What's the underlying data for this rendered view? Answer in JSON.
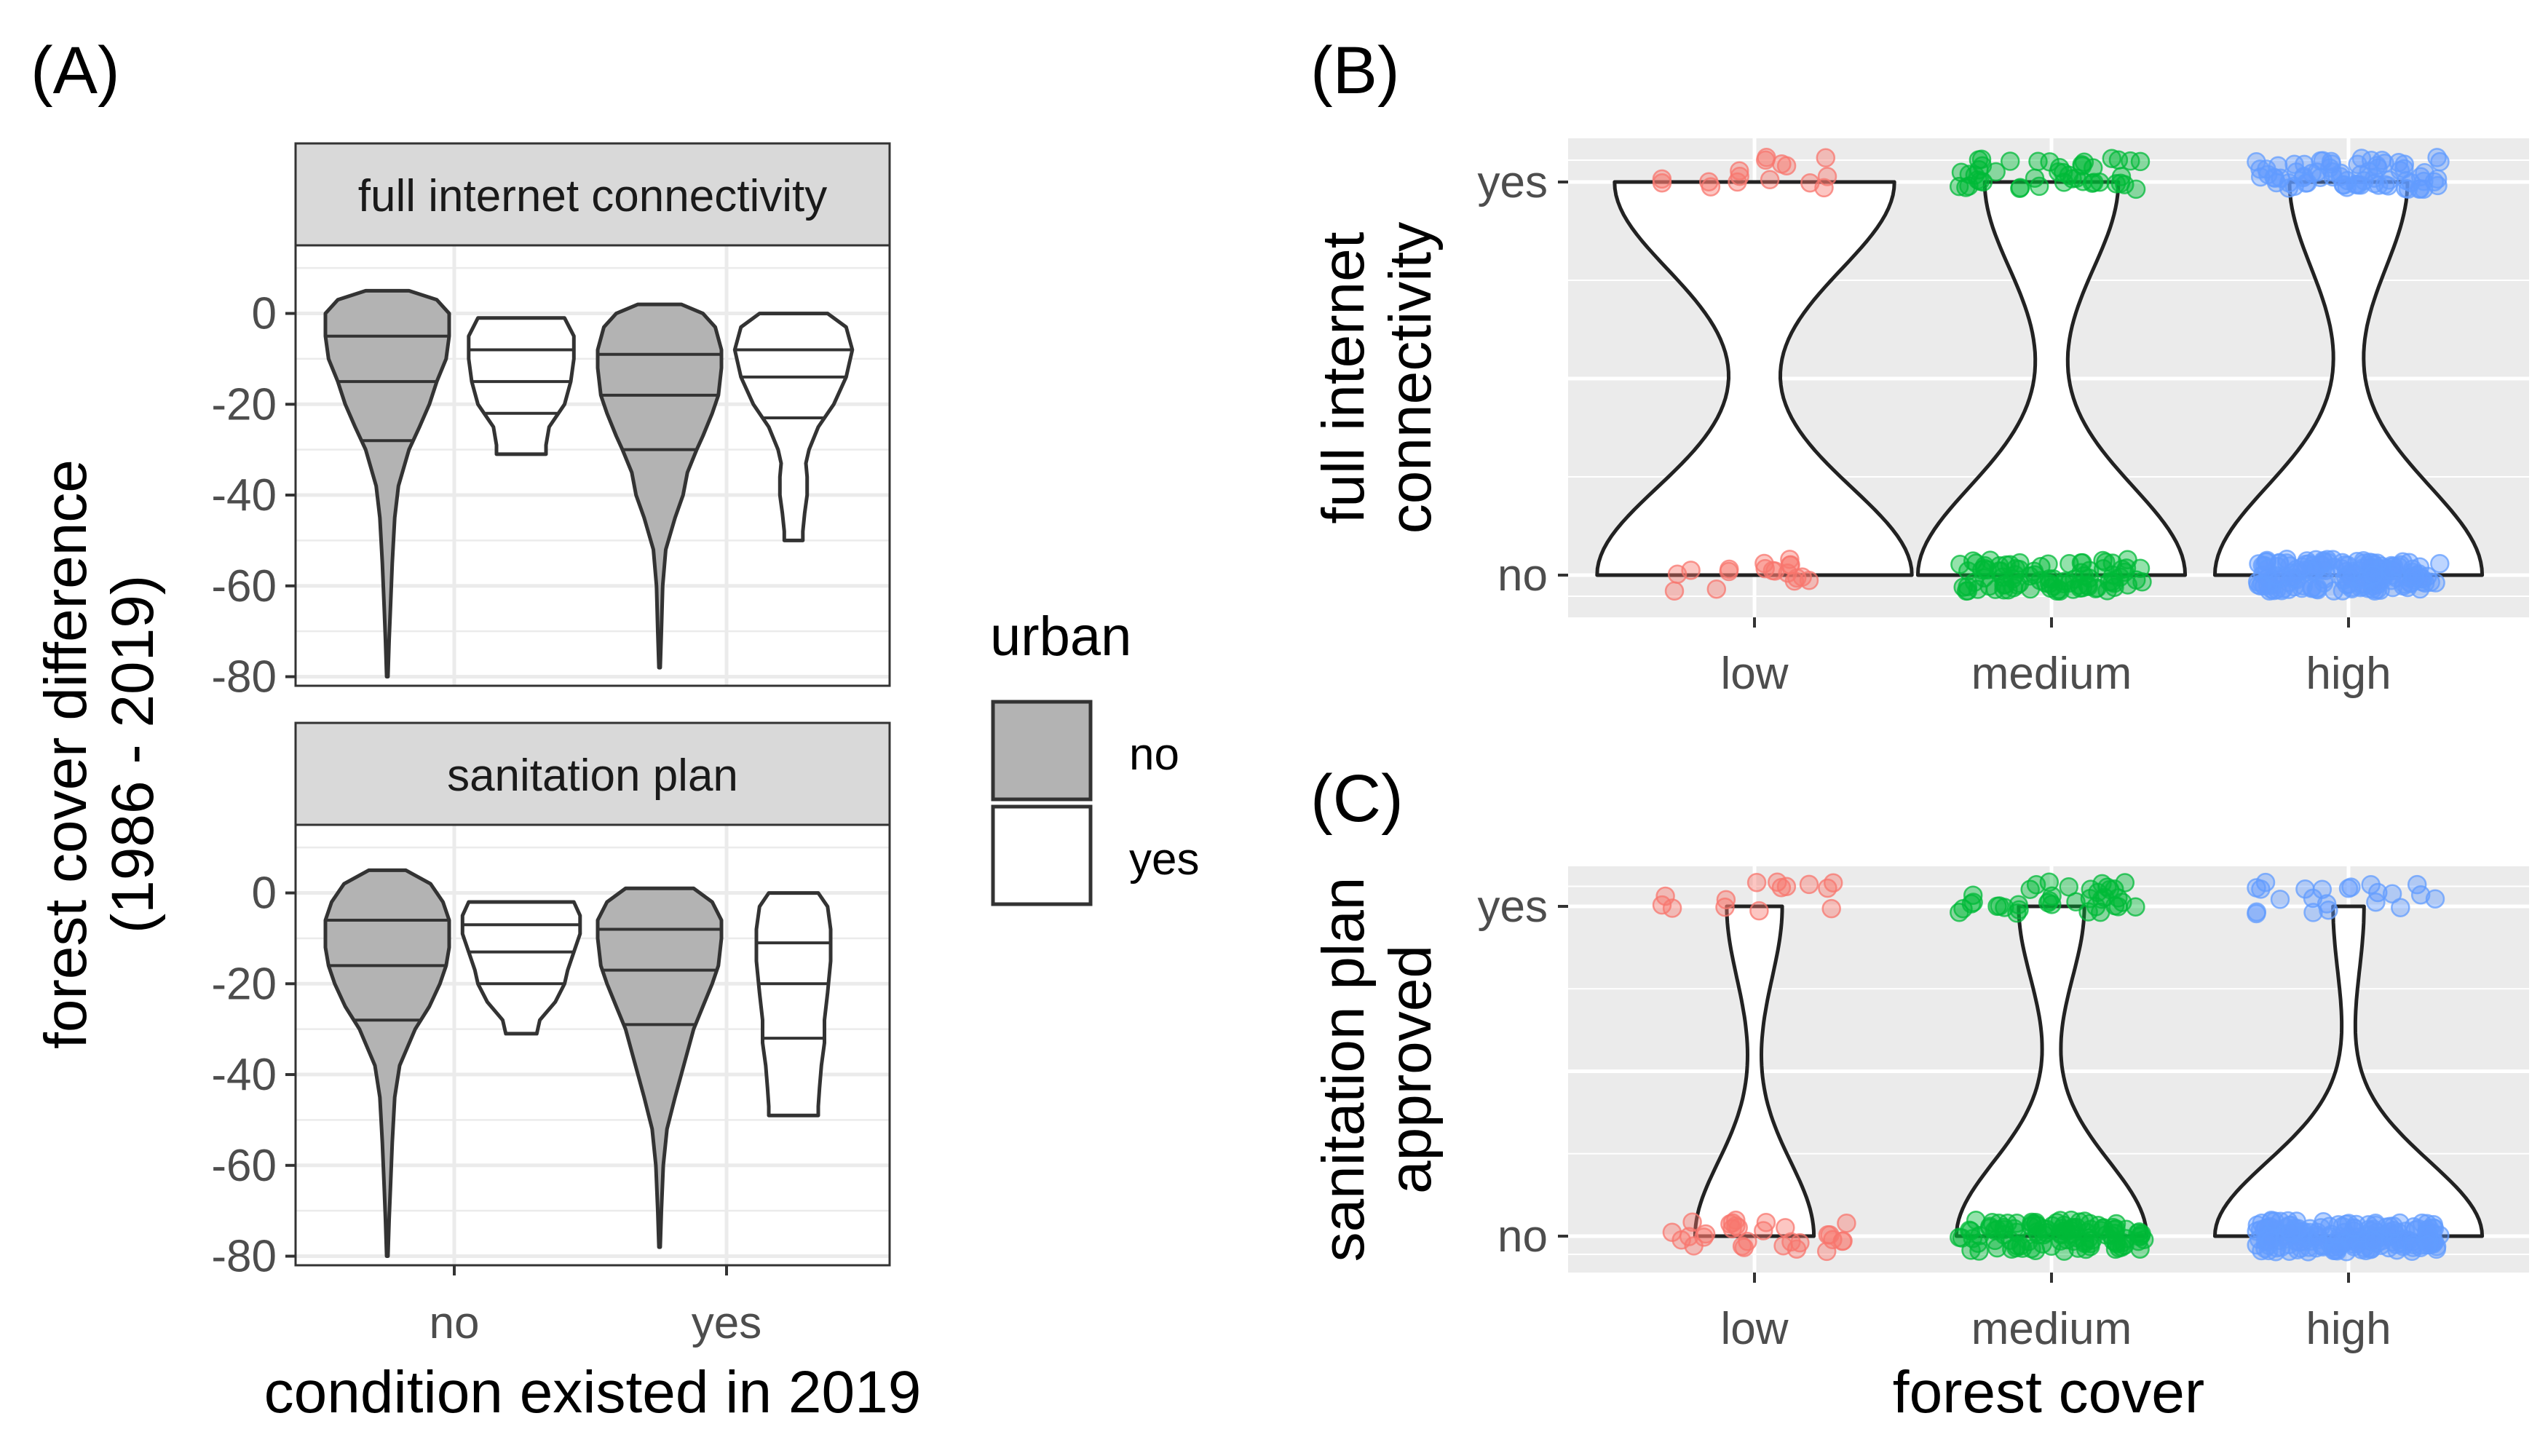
{
  "panel_tags": [
    "(A)",
    "(B)",
    "(C)"
  ],
  "colors": {
    "urban_no_fill": "#b3b3b3",
    "urban_yes_fill": "#ffffff",
    "outline": "#333333",
    "panel_bg": "#ebebeb",
    "strip_bg": "#d9d9d9",
    "low": "#f8766d",
    "medium": "#00ba38",
    "high": "#619cff"
  },
  "legend": {
    "title": "urban",
    "items": [
      {
        "label": "no",
        "fill": "#b3b3b3"
      },
      {
        "label": "yes",
        "fill": "#ffffff"
      }
    ]
  },
  "chart_data": [
    {
      "id": "A",
      "type": "violin",
      "facet": "full internet connectivity",
      "xlabel": "condition existed in 2019",
      "ylabel": "forest cover difference (1986 - 2019)",
      "categories": [
        "no",
        "yes"
      ],
      "ylim": [
        -82,
        15
      ],
      "yticks": [
        0,
        -20,
        -40,
        -60,
        -80
      ],
      "grid": true,
      "series": [
        {
          "name": "no",
          "violins": [
            {
              "x": "no",
              "min": -80,
              "max": 5,
              "quantiles": [
                -5,
                -15,
                -28
              ],
              "profile": [
                [
                  5,
                  0.35
                ],
                [
                  3,
                  0.8
                ],
                [
                  0,
                  1.0
                ],
                [
                  -5,
                  1.0
                ],
                [
                  -10,
                  0.95
                ],
                [
                  -15,
                  0.8
                ],
                [
                  -20,
                  0.68
                ],
                [
                  -25,
                  0.52
                ],
                [
                  -30,
                  0.35
                ],
                [
                  -38,
                  0.18
                ],
                [
                  -45,
                  0.12
                ],
                [
                  -55,
                  0.08
                ],
                [
                  -65,
                  0.05
                ],
                [
                  -72,
                  0.03
                ],
                [
                  -80,
                  0.01
                ]
              ]
            },
            {
              "x": "yes",
              "min": -78,
              "max": 2,
              "quantiles": [
                -9,
                -18,
                -30
              ],
              "profile": [
                [
                  2,
                  0.35
                ],
                [
                  0,
                  0.7
                ],
                [
                  -3,
                  0.9
                ],
                [
                  -8,
                  1.0
                ],
                [
                  -12,
                  1.0
                ],
                [
                  -18,
                  0.95
                ],
                [
                  -22,
                  0.85
                ],
                [
                  -27,
                  0.7
                ],
                [
                  -30,
                  0.6
                ],
                [
                  -35,
                  0.45
                ],
                [
                  -40,
                  0.38
                ],
                [
                  -45,
                  0.25
                ],
                [
                  -52,
                  0.1
                ],
                [
                  -60,
                  0.05
                ],
                [
                  -70,
                  0.03
                ],
                [
                  -78,
                  0.01
                ]
              ]
            }
          ]
        },
        {
          "name": "yes",
          "violins": [
            {
              "x": "no",
              "min": -31,
              "max": -1,
              "quantiles": [
                -8,
                -15,
                -22
              ],
              "profile": [
                [
                  -1,
                  0.7
                ],
                [
                  -5,
                  0.85
                ],
                [
                  -10,
                  0.85
                ],
                [
                  -15,
                  0.8
                ],
                [
                  -20,
                  0.7
                ],
                [
                  -25,
                  0.45
                ],
                [
                  -29,
                  0.4
                ],
                [
                  -31,
                  0.4
                ]
              ]
            },
            {
              "x": "yes",
              "min": -50,
              "max": 0,
              "quantiles": [
                -8,
                -14,
                -23
              ],
              "profile": [
                [
                  0,
                  0.55
                ],
                [
                  -3,
                  0.85
                ],
                [
                  -8,
                  0.95
                ],
                [
                  -14,
                  0.85
                ],
                [
                  -20,
                  0.65
                ],
                [
                  -25,
                  0.4
                ],
                [
                  -30,
                  0.25
                ],
                [
                  -33,
                  0.2
                ],
                [
                  -36,
                  0.22
                ],
                [
                  -40,
                  0.22
                ],
                [
                  -44,
                  0.18
                ],
                [
                  -48,
                  0.15
                ],
                [
                  -50,
                  0.15
                ]
              ]
            }
          ]
        }
      ]
    },
    {
      "id": "A",
      "type": "violin",
      "facet": "sanitation plan",
      "xlabel": "condition existed in 2019",
      "ylabel": "forest cover difference (1986 - 2019)",
      "categories": [
        "no",
        "yes"
      ],
      "ylim": [
        -82,
        15
      ],
      "yticks": [
        0,
        -20,
        -40,
        -60,
        -80
      ],
      "grid": true,
      "series": [
        {
          "name": "no",
          "violins": [
            {
              "x": "no",
              "min": -80,
              "max": 5,
              "quantiles": [
                -6,
                -16,
                -28
              ],
              "profile": [
                [
                  5,
                  0.3
                ],
                [
                  2,
                  0.7
                ],
                [
                  -2,
                  0.9
                ],
                [
                  -6,
                  1.0
                ],
                [
                  -12,
                  1.0
                ],
                [
                  -16,
                  0.95
                ],
                [
                  -20,
                  0.85
                ],
                [
                  -25,
                  0.68
                ],
                [
                  -30,
                  0.45
                ],
                [
                  -38,
                  0.2
                ],
                [
                  -45,
                  0.12
                ],
                [
                  -55,
                  0.08
                ],
                [
                  -65,
                  0.05
                ],
                [
                  -72,
                  0.03
                ],
                [
                  -80,
                  0.01
                ]
              ]
            },
            {
              "x": "yes",
              "min": -78,
              "max": 1,
              "quantiles": [
                -8,
                -17,
                -29
              ],
              "profile": [
                [
                  1,
                  0.55
                ],
                [
                  -2,
                  0.85
                ],
                [
                  -6,
                  1.0
                ],
                [
                  -10,
                  1.0
                ],
                [
                  -16,
                  0.95
                ],
                [
                  -20,
                  0.85
                ],
                [
                  -25,
                  0.7
                ],
                [
                  -30,
                  0.55
                ],
                [
                  -35,
                  0.45
                ],
                [
                  -40,
                  0.35
                ],
                [
                  -45,
                  0.25
                ],
                [
                  -52,
                  0.12
                ],
                [
                  -60,
                  0.06
                ],
                [
                  -70,
                  0.03
                ],
                [
                  -78,
                  0.01
                ]
              ]
            }
          ]
        },
        {
          "name": "yes",
          "violins": [
            {
              "x": "no",
              "min": -31,
              "max": -2,
              "quantiles": [
                -7,
                -13,
                -20
              ],
              "profile": [
                [
                  -2,
                  0.85
                ],
                [
                  -5,
                  0.95
                ],
                [
                  -9,
                  0.95
                ],
                [
                  -13,
                  0.85
                ],
                [
                  -17,
                  0.75
                ],
                [
                  -20,
                  0.7
                ],
                [
                  -24,
                  0.55
                ],
                [
                  -28,
                  0.3
                ],
                [
                  -31,
                  0.25
                ]
              ]
            },
            {
              "x": "yes",
              "min": -49,
              "max": 0,
              "quantiles": [
                -11,
                -20,
                -32
              ],
              "profile": [
                [
                  0,
                  0.4
                ],
                [
                  -3,
                  0.55
                ],
                [
                  -8,
                  0.6
                ],
                [
                  -15,
                  0.6
                ],
                [
                  -22,
                  0.55
                ],
                [
                  -28,
                  0.5
                ],
                [
                  -33,
                  0.5
                ],
                [
                  -38,
                  0.45
                ],
                [
                  -43,
                  0.42
                ],
                [
                  -47,
                  0.4
                ],
                [
                  -49,
                  0.4
                ]
              ]
            }
          ]
        }
      ]
    },
    {
      "id": "B",
      "type": "violin",
      "xlabel": "",
      "ylabel": "full internet connectivity",
      "categories": [
        "low",
        "medium",
        "high"
      ],
      "yticks": [
        "no",
        "yes"
      ],
      "grid": true,
      "series": [
        {
          "name": "low",
          "n_yes": 16,
          "n_no": 18,
          "max_half_width": 0.53,
          "min_half_width": 0.03
        },
        {
          "name": "medium",
          "n_yes": 45,
          "n_no": 90,
          "max_half_width": 0.45,
          "min_half_width": 0.02
        },
        {
          "name": "high",
          "n_yes": 75,
          "n_no": 170,
          "max_half_width": 0.45,
          "min_half_width": 0.01
        }
      ]
    },
    {
      "id": "C",
      "type": "violin",
      "xlabel": "forest cover",
      "ylabel": "sanitation plan approved",
      "categories": [
        "low",
        "medium",
        "high"
      ],
      "yticks": [
        "no",
        "yes"
      ],
      "grid": true,
      "series": [
        {
          "name": "low",
          "n_yes": 14,
          "n_no": 30,
          "max_half_width": 0.2,
          "min_half_width": 0.02
        },
        {
          "name": "medium",
          "n_yes": 38,
          "n_no": 110,
          "max_half_width": 0.32,
          "min_half_width": 0.01
        },
        {
          "name": "high",
          "n_yes": 22,
          "n_no": 190,
          "max_half_width": 0.45,
          "min_half_width": 0.005
        }
      ]
    }
  ]
}
